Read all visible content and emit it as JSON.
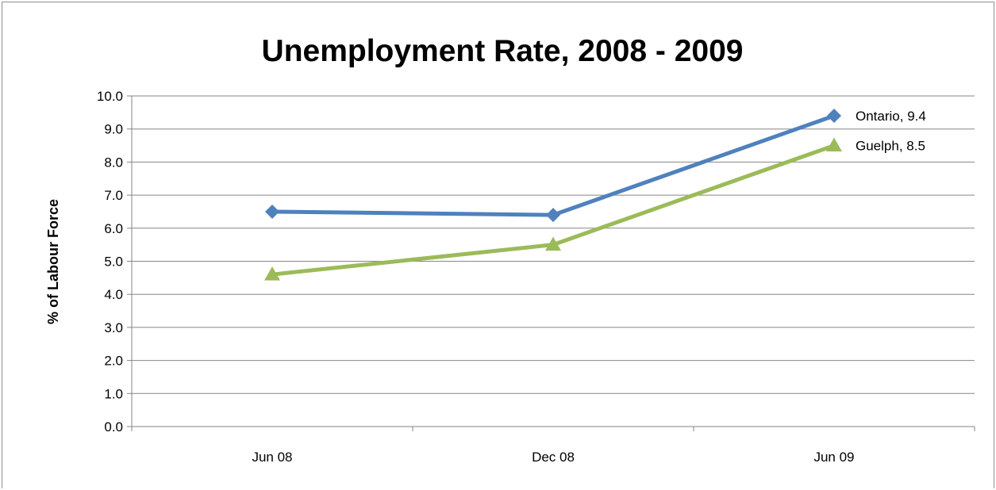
{
  "chart_data": {
    "type": "line",
    "title": "Unemployment Rate, 2008 - 2009",
    "ylabel": "% of Labour Force",
    "xlabel": "",
    "categories": [
      "Jun 08",
      "Dec 08",
      "Jun 09"
    ],
    "ylim": [
      0,
      10
    ],
    "y_ticks": [
      "0.0",
      "1.0",
      "2.0",
      "3.0",
      "4.0",
      "5.0",
      "6.0",
      "7.0",
      "8.0",
      "9.0",
      "10.0"
    ],
    "grid": "horizontal",
    "legend": "none",
    "series": [
      {
        "name": "Ontario",
        "values": [
          6.5,
          6.4,
          9.4
        ],
        "color": "#4f81bd",
        "marker": "diamond",
        "end_label": "Ontario, 9.4"
      },
      {
        "name": "Guelph",
        "values": [
          4.6,
          5.5,
          8.5
        ],
        "color": "#9bbb59",
        "marker": "triangle",
        "end_label": "Guelph, 8.5"
      }
    ]
  }
}
